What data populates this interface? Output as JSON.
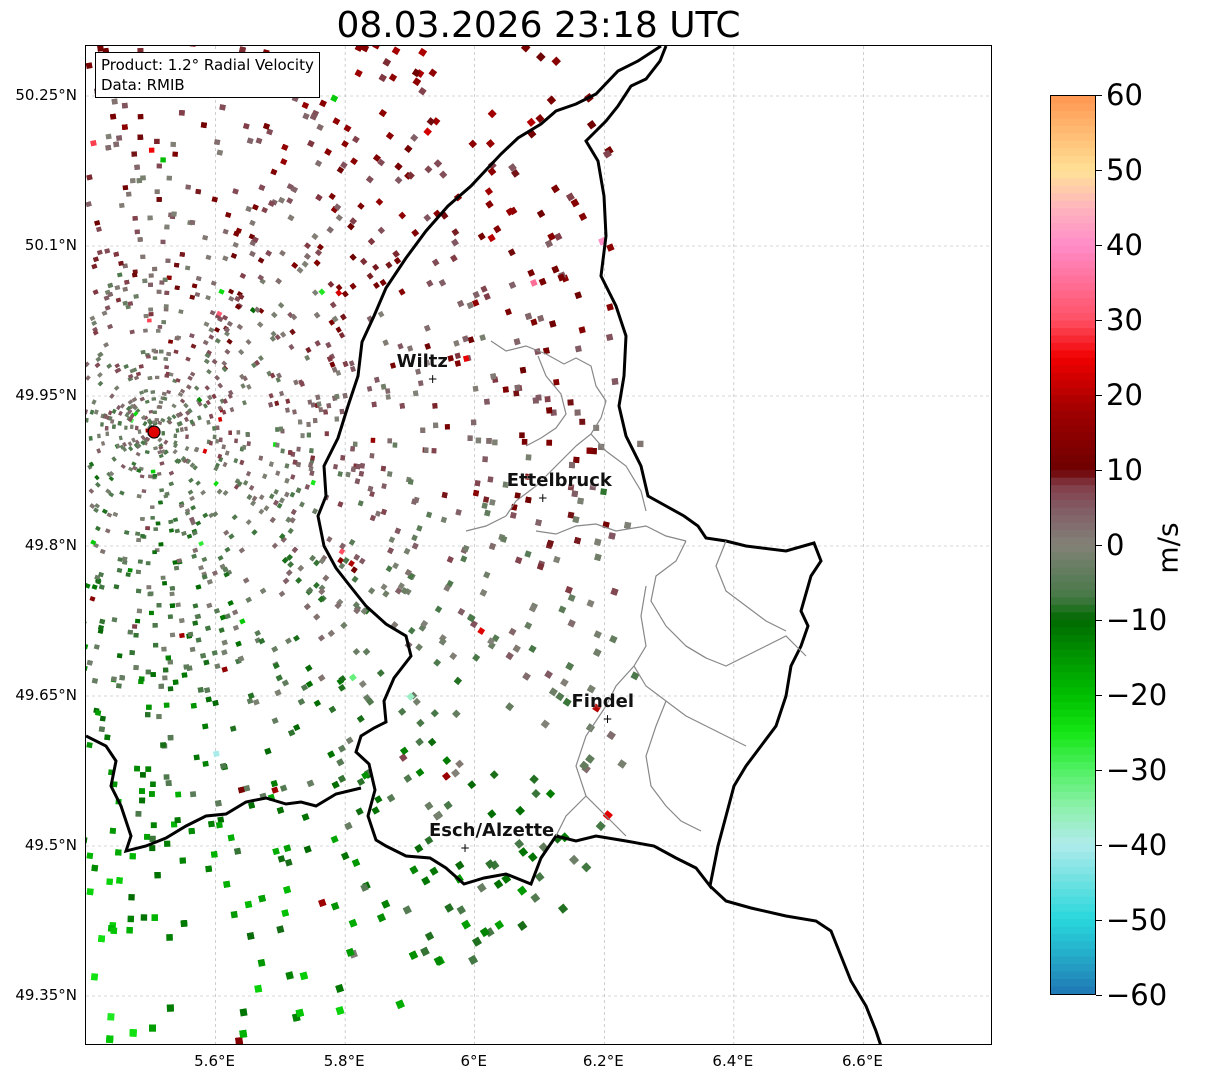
{
  "title": "08.03.2026 23:18 UTC",
  "info_box": {
    "product": "Product: 1.2° Radial Velocity",
    "data": "Data: RMIB"
  },
  "chart_data": {
    "type": "heatmap",
    "title": "08.03.2026 23:18 UTC",
    "lon_range": [
      5.4,
      6.8
    ],
    "lat_range": [
      49.3,
      50.3
    ],
    "lat_ticks": [
      "50.25°N",
      "50.1°N",
      "49.95°N",
      "49.8°N",
      "49.65°N",
      "49.5°N",
      "49.35°N"
    ],
    "lat_tick_values": [
      50.25,
      50.1,
      49.95,
      49.8,
      49.65,
      49.5,
      49.35
    ],
    "lon_ticks": [
      "5.6°E",
      "5.8°E",
      "6°E",
      "6.2°E",
      "6.4°E",
      "6.6°E"
    ],
    "lon_tick_values": [
      5.6,
      5.8,
      6.0,
      6.2,
      6.4,
      6.6
    ],
    "grid": true,
    "radar_site": {
      "lon": 5.505,
      "lat": 49.914
    },
    "cities": [
      {
        "name": "Wiltz",
        "lon": 5.935,
        "lat": 49.967
      },
      {
        "name": "Ettelbruck",
        "lon": 6.105,
        "lat": 49.848
      },
      {
        "name": "Findel",
        "lon": 6.205,
        "lat": 49.627
      },
      {
        "name": "Esch/Alzette",
        "lon": 5.985,
        "lat": 49.498
      }
    ],
    "colorbar": {
      "label": "m/s",
      "vmin": -60,
      "vmax": 60,
      "ticks": [
        "60",
        "50",
        "40",
        "30",
        "20",
        "10",
        "0",
        "−10",
        "−20",
        "−30",
        "−40",
        "−50",
        "−60"
      ],
      "tick_values": [
        60,
        50,
        40,
        30,
        20,
        10,
        0,
        -10,
        -20,
        -30,
        -40,
        -50,
        -60
      ]
    }
  },
  "colors": {
    "border": "#000000",
    "canton": "#888888",
    "grid": "#b0b0b0",
    "radar_dot": "#e00000"
  }
}
